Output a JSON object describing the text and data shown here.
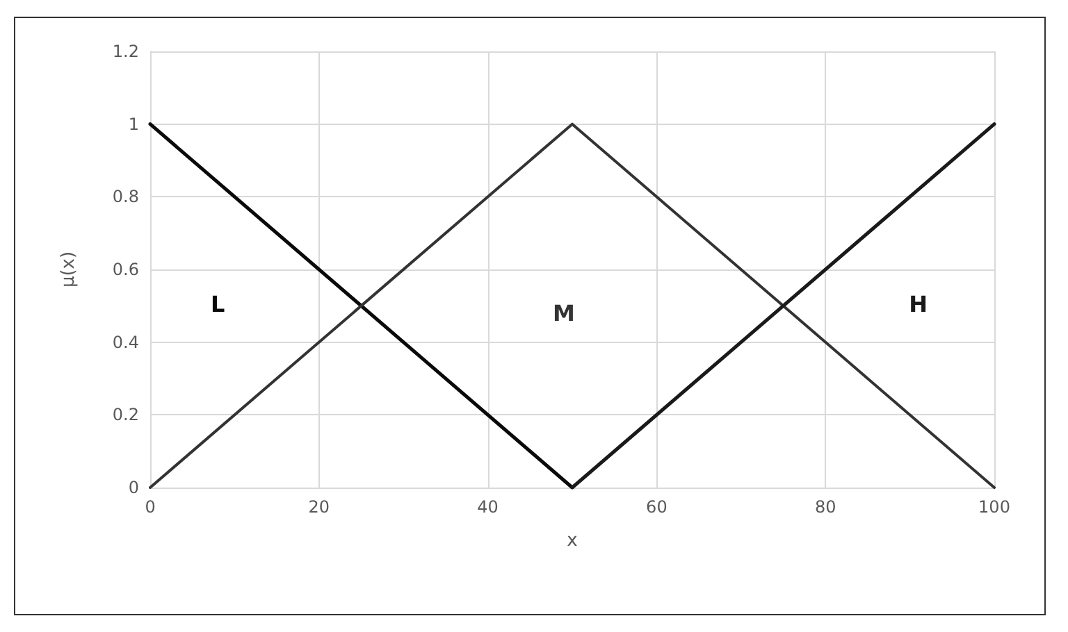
{
  "chart_data": {
    "type": "line",
    "xlabel": "x",
    "ylabel": "μ(x)",
    "xlim": [
      0,
      100
    ],
    "xticks": [
      0,
      20,
      40,
      60,
      80,
      100
    ],
    "ylim": [
      0,
      1.2
    ],
    "yticks": [
      0,
      0.2,
      0.4,
      0.6,
      0.8,
      1,
      1.2
    ],
    "grid": true,
    "marker": "none",
    "line_style": "solid",
    "series": [
      {
        "name": "L",
        "color": "#0a0a0a",
        "x": [
          0,
          50
        ],
        "values": [
          1,
          0
        ]
      },
      {
        "name": "M",
        "color": "#333333",
        "x": [
          0,
          50,
          100
        ],
        "values": [
          0,
          1,
          0
        ]
      },
      {
        "name": "H",
        "color": "#1a1a1a",
        "x": [
          50,
          100
        ],
        "values": [
          0,
          1
        ]
      }
    ]
  }
}
